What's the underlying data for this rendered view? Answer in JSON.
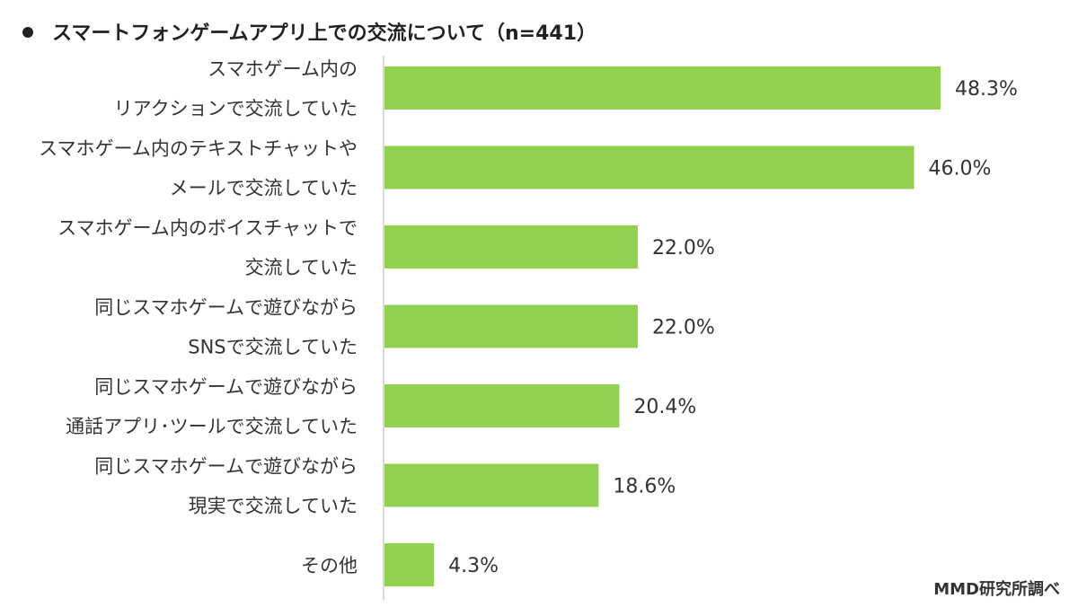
{
  "chart_data": {
    "type": "bar",
    "orientation": "horizontal",
    "title": "スマートフォンゲームアプリ上での交流について（n=441）",
    "title_marker": "●",
    "categories": [
      [
        "スマホゲーム内の",
        "リアクションで交流していた"
      ],
      [
        "スマホゲーム内のテキストチャットや",
        "メールで交流していた"
      ],
      [
        "スマホゲーム内のボイスチャットで",
        "交流していた"
      ],
      [
        "同じスマホゲームで遊びながら",
        "SNSで交流していた"
      ],
      [
        "同じスマホゲームで遊びながら",
        "通話アプリ･ツールで交流していた"
      ],
      [
        "同じスマホゲームで遊びながら",
        "現実で交流していた"
      ],
      [
        "その他"
      ]
    ],
    "values": [
      48.3,
      46.0,
      22.0,
      22.0,
      20.4,
      18.6,
      4.3
    ],
    "value_labels": [
      "48.3%",
      "46.0%",
      "22.0%",
      "22.0%",
      "20.4%",
      "18.6%",
      "4.3%"
    ],
    "xlim": [
      0,
      50
    ],
    "grid": false,
    "legend": "none",
    "bar_color": "#92D050",
    "axis_color": "#D9D9D9",
    "source": "MMD研究所調べ"
  }
}
